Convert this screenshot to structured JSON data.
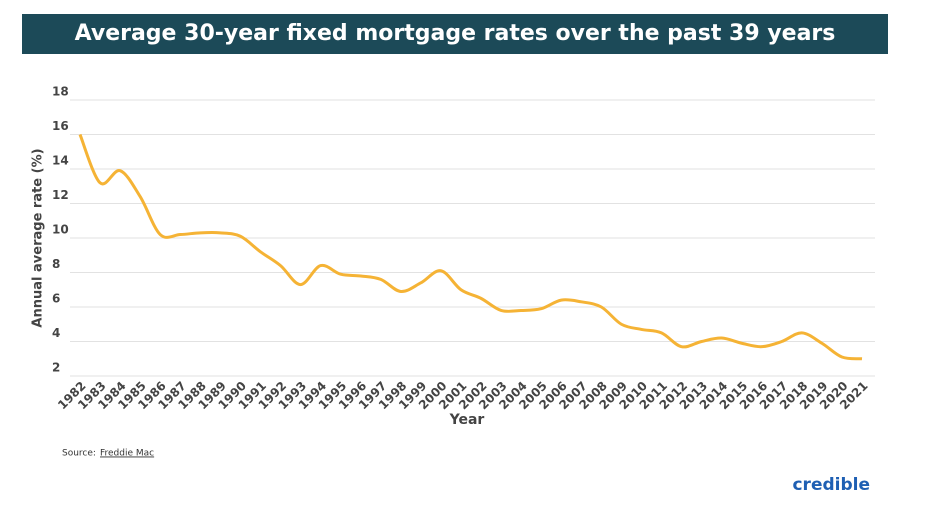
{
  "chart_data": {
    "type": "line",
    "title": "Average 30-year fixed mortgage rates over the past 39 years",
    "x_label": "Year",
    "y_label": "Annual average rate (%)",
    "categories": [
      "1982",
      "1983",
      "1984",
      "1985",
      "1986",
      "1987",
      "1988",
      "1989",
      "1990",
      "1991",
      "1992",
      "1993",
      "1994",
      "1995",
      "1996",
      "1997",
      "1998",
      "1999",
      "2000",
      "2001",
      "2002",
      "2003",
      "2004",
      "2005",
      "2006",
      "2007",
      "2008",
      "2009",
      "2010",
      "2011",
      "2012",
      "2013",
      "2014",
      "2015",
      "2016",
      "2017",
      "2018",
      "2019",
      "2020",
      "2021"
    ],
    "series": [
      {
        "name": "Annual average rate",
        "color": "#f5b335",
        "values": [
          16.0,
          13.2,
          13.9,
          12.4,
          10.2,
          10.2,
          10.3,
          10.3,
          10.1,
          9.2,
          8.4,
          7.3,
          8.4,
          7.9,
          7.8,
          7.6,
          6.9,
          7.4,
          8.1,
          7.0,
          6.5,
          5.8,
          5.8,
          5.9,
          6.4,
          6.3,
          6.0,
          5.0,
          4.7,
          4.5,
          3.7,
          4.0,
          4.2,
          3.9,
          3.7,
          4.0,
          4.5,
          3.9,
          3.1,
          3.0
        ]
      }
    ],
    "ylim": [
      2,
      18
    ],
    "yticks": [
      2,
      4,
      6,
      8,
      10,
      12,
      14,
      16,
      18
    ],
    "grid": true,
    "source_prefix": "Source:",
    "source": "Freddie Mac",
    "brand": "credible"
  }
}
